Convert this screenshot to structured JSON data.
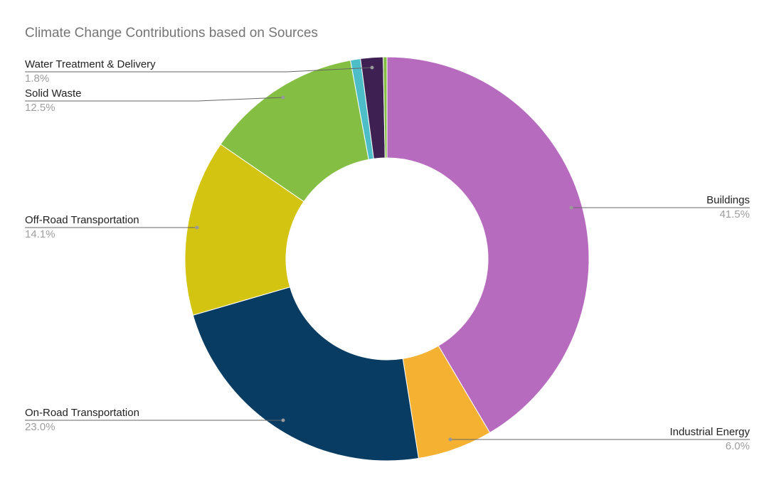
{
  "chart_data": {
    "type": "pie",
    "donut": true,
    "title": "Climate Change Contributions based on Sources",
    "legend": "none",
    "slices": [
      {
        "label": "Buildings",
        "value": 41.5,
        "display": "41.5%",
        "color": "#b76bbe"
      },
      {
        "label": "Industrial Energy",
        "value": 6.0,
        "display": "6.0%",
        "color": "#f4b132"
      },
      {
        "label": "On-Road Transportation",
        "value": 23.0,
        "display": "23.0%",
        "color": "#093c63"
      },
      {
        "label": "Off-Road Transportation",
        "value": 14.1,
        "display": "14.1%",
        "color": "#d4c412"
      },
      {
        "label": "Solid Waste",
        "value": 12.5,
        "display": "12.5%",
        "color": "#84bf44"
      },
      {
        "label": "",
        "value": 0.8,
        "display": "",
        "color": "#4dbdc8"
      },
      {
        "label": "Water Treatment & Delivery",
        "value": 1.8,
        "display": "1.8%",
        "color": "#3e2152"
      },
      {
        "label": "",
        "value": 0.3,
        "display": "",
        "color": "#84bf44"
      }
    ]
  }
}
